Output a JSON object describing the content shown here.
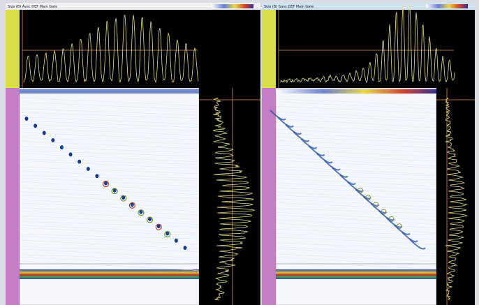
{
  "panels": [
    {
      "title": "Size (B) Avec DEF Main Gate"
    },
    {
      "title": "Size (B) Sans DEF Main Gate"
    }
  ]
}
